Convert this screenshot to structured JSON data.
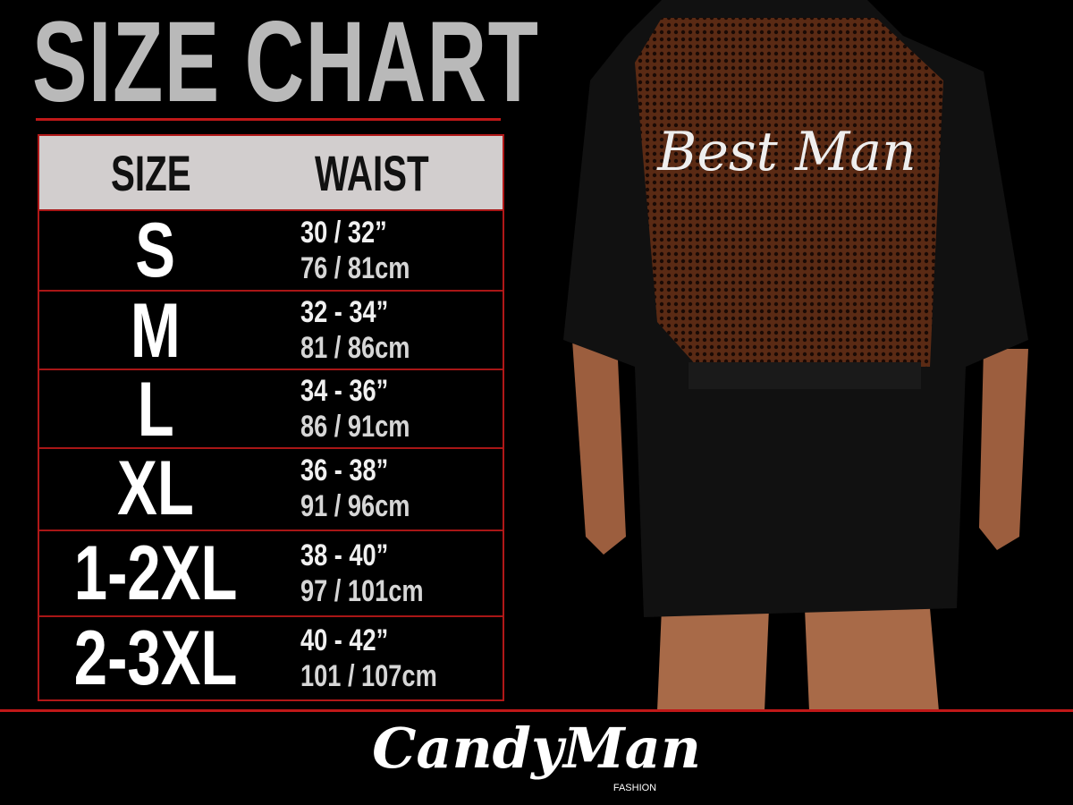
{
  "title": "SIZE CHART",
  "table": {
    "headers": [
      "SIZE",
      "WAIST"
    ],
    "rows": [
      {
        "size": "S",
        "inches": "30 / 32”",
        "cm": "76 / 81cm"
      },
      {
        "size": "M",
        "inches": "32 - 34”",
        "cm": "81 / 86cm"
      },
      {
        "size": "L",
        "inches": "34 - 36”",
        "cm": "86 / 91cm"
      },
      {
        "size": "XL",
        "inches": "36 - 38”",
        "cm": "91 / 96cm"
      },
      {
        "size": "1-2XL",
        "inches": "38 - 40”",
        "cm": "97 / 101cm"
      },
      {
        "size": "2-3XL",
        "inches": "40 - 42”",
        "cm": "101 / 107cm"
      }
    ]
  },
  "photo": {
    "garment_text": "Best Man"
  },
  "logo": {
    "brand": "CandyMan",
    "sub": "FASHION"
  },
  "colors": {
    "background": "#000000",
    "accent_red": "#c01818",
    "header_bg": "#d2cece",
    "title_gray": "#b9b9b9"
  }
}
